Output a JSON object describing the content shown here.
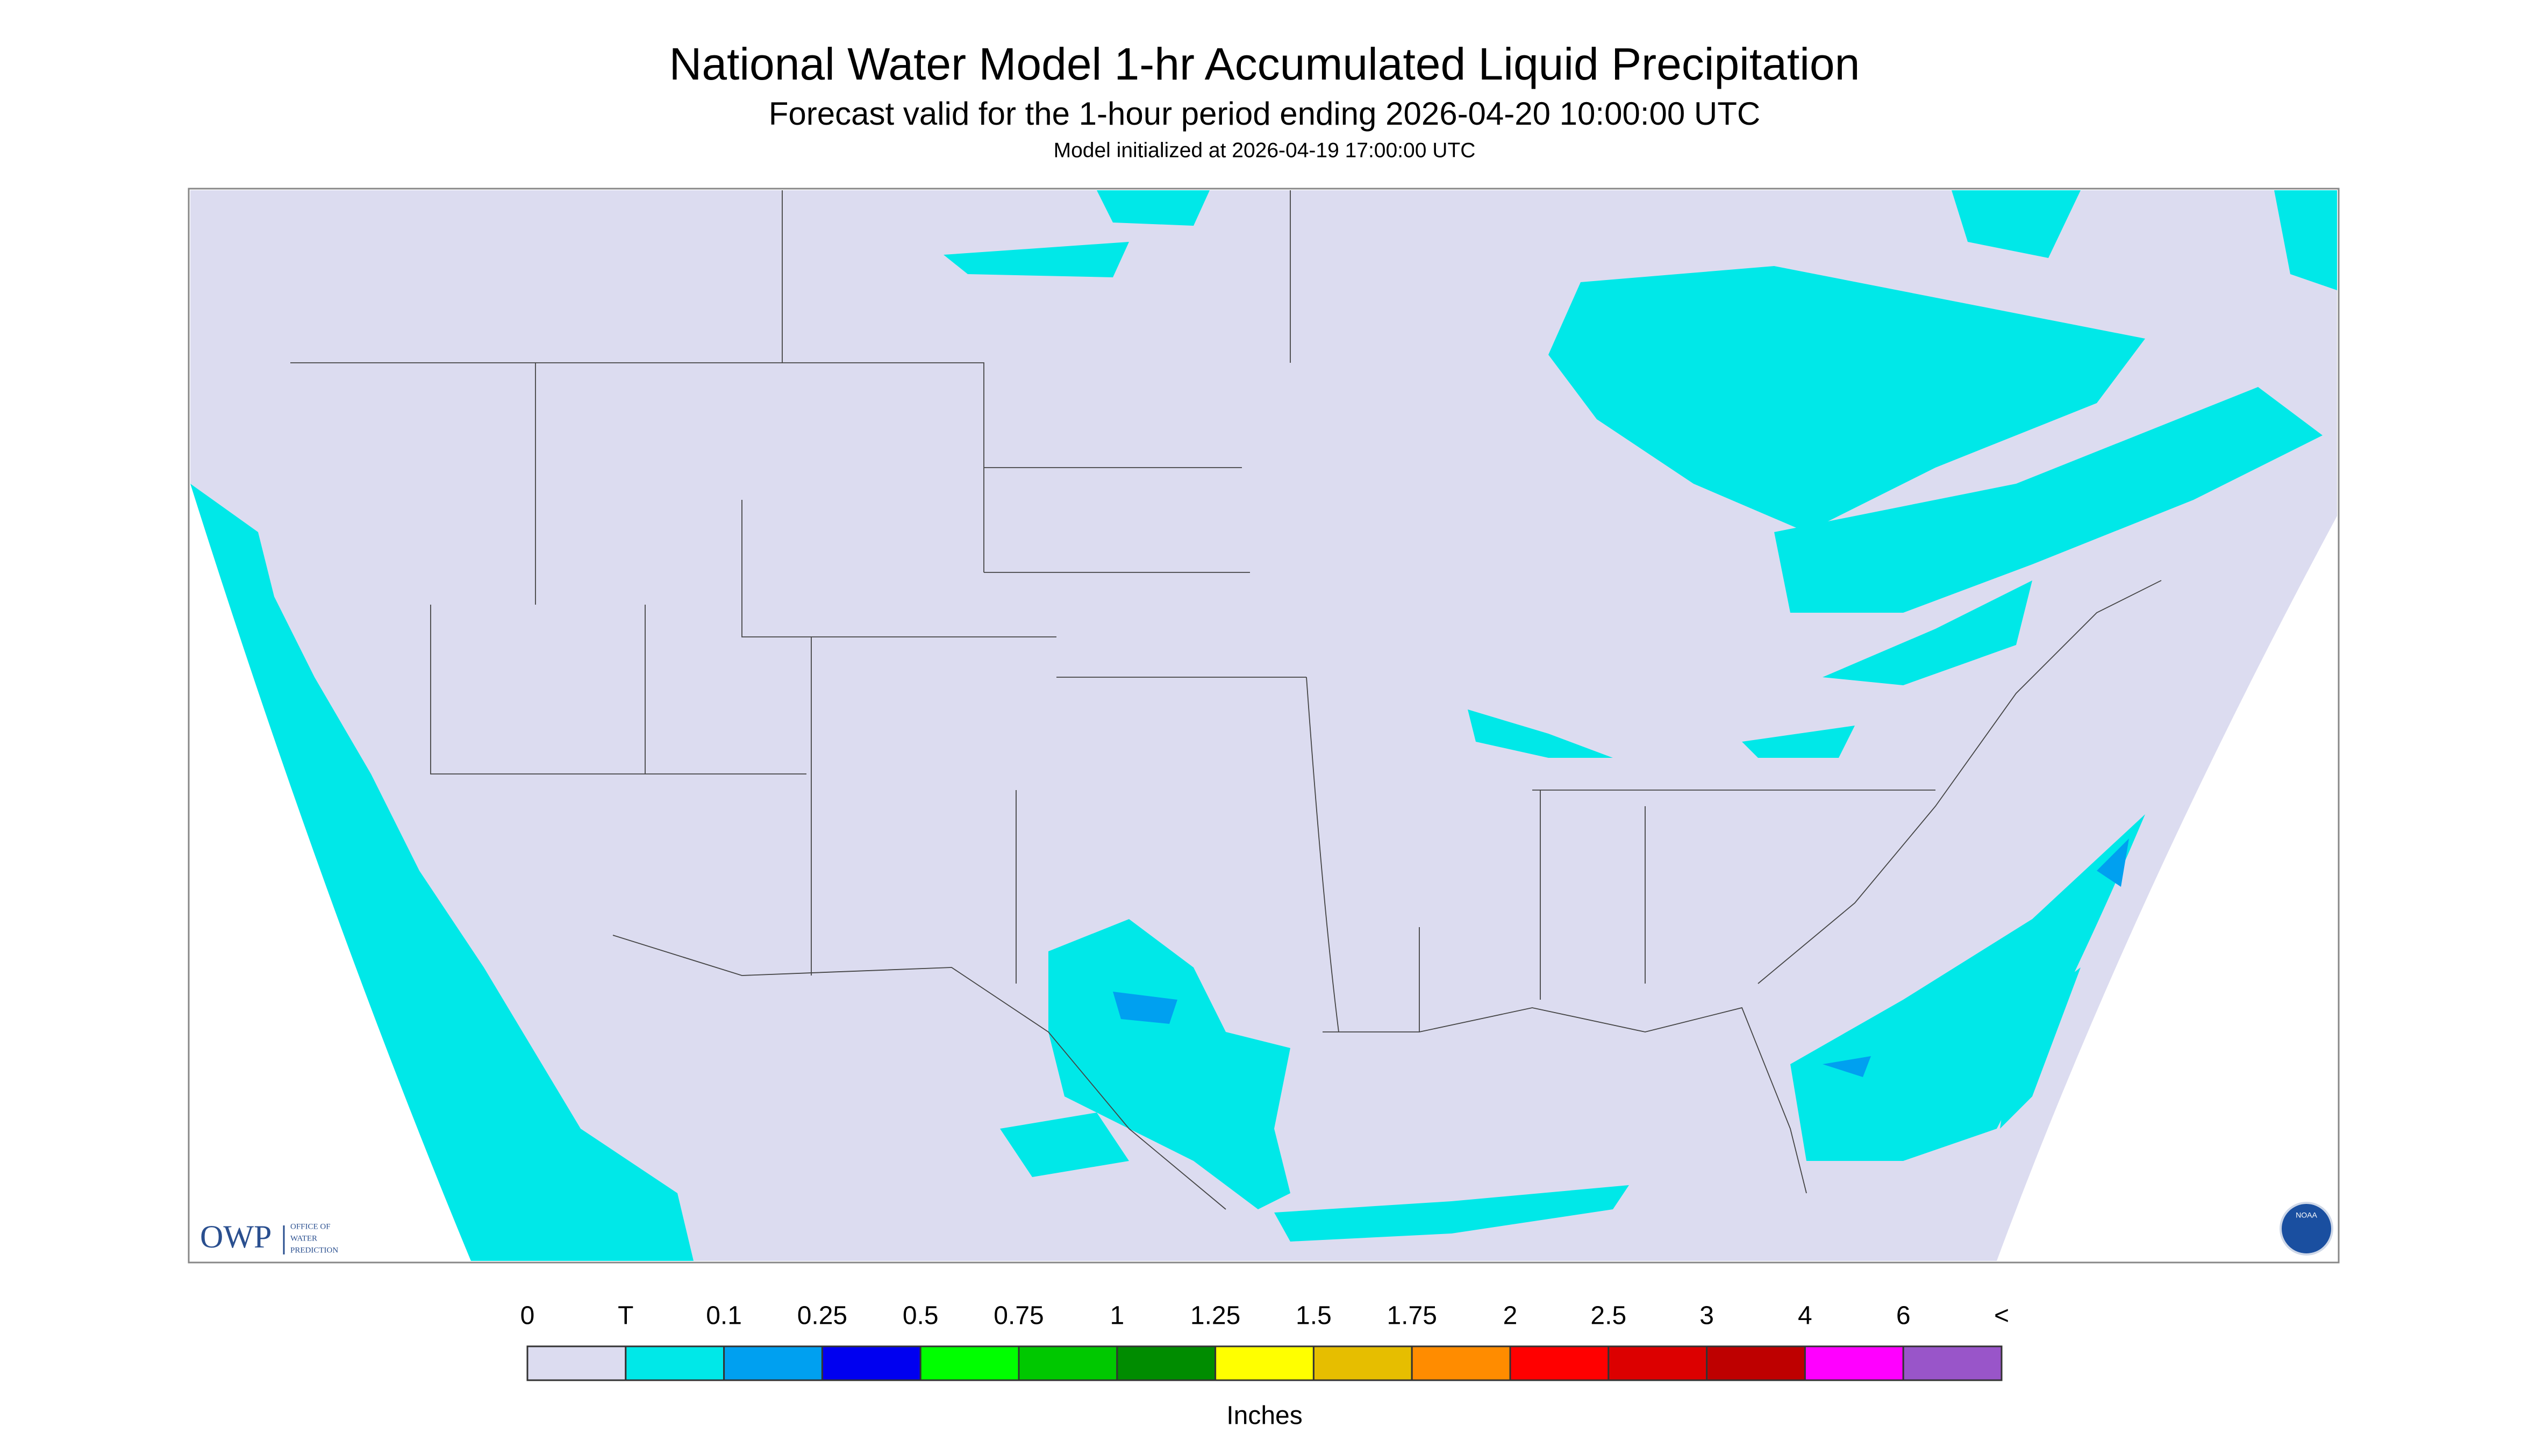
{
  "header": {
    "title": "National Water Model 1-hr Accumulated Liquid Precipitation",
    "subtitle": "Forecast valid for the 1-hour period ending 2026-04-20 10:00:00 UTC",
    "note": "Model initialized at 2026-04-19 17:00:00 UTC"
  },
  "logo": {
    "name": "OWP",
    "lines": [
      "OFFICE OF",
      "WATER",
      "PREDICTION"
    ],
    "badge": "NOAA"
  },
  "legend": {
    "labels": [
      "0",
      "T",
      "0.1",
      "0.25",
      "0.5",
      "0.75",
      "1",
      "1.25",
      "1.5",
      "1.75",
      "2",
      "2.5",
      "3",
      "4",
      "6",
      "<"
    ],
    "colors": [
      "#dcdcf0",
      "#00e8e8",
      "#00a0f0",
      "#0000f0",
      "#00ff00",
      "#00c800",
      "#008c00",
      "#ffff00",
      "#e6be00",
      "#ff8c00",
      "#ff0000",
      "#dc0000",
      "#be0000",
      "#ff00ff",
      "#9955c9"
    ],
    "unit": "Inches"
  }
}
